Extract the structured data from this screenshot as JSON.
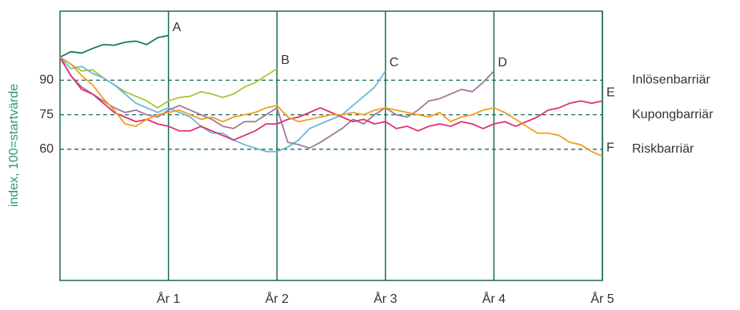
{
  "chart_data": {
    "type": "line",
    "ylabel": "index, 100=startvärde",
    "xlim": [
      0,
      5
    ],
    "ylim": [
      3,
      120
    ],
    "xticks": [
      {
        "value": 1,
        "label": "År 1"
      },
      {
        "value": 2,
        "label": "År 2"
      },
      {
        "value": 3,
        "label": "År 3"
      },
      {
        "value": 4,
        "label": "År 4"
      },
      {
        "value": 5,
        "label": "År 5"
      }
    ],
    "yticks": [
      60,
      75,
      90
    ],
    "reference_lines": [
      {
        "value": 90,
        "label": "Inlösenbarriär"
      },
      {
        "value": 75,
        "label": "Kupongbarriär"
      },
      {
        "value": 60,
        "label": "Riskbarriär"
      }
    ],
    "x": [
      0,
      0.1,
      0.2,
      0.3,
      0.4,
      0.5,
      0.6,
      0.7,
      0.8,
      0.9,
      1,
      1.1,
      1.2,
      1.3,
      1.4,
      1.5,
      1.6,
      1.7,
      1.8,
      1.9,
      2,
      2.1,
      2.2,
      2.3,
      2.4,
      2.5,
      2.6,
      2.7,
      2.8,
      2.9,
      3,
      3.1,
      3.2,
      3.3,
      3.4,
      3.5,
      3.6,
      3.7,
      3.8,
      3.9,
      4,
      4.1,
      4.2,
      4.3,
      4.4,
      4.5,
      4.6,
      4.7,
      4.8,
      4.9,
      5
    ],
    "series": [
      {
        "name": "A",
        "color": "#1a7a5e",
        "values": [
          100,
          102.4,
          101.8,
          103.8,
          105.5,
          105.2,
          106.5,
          107,
          105.5,
          108.5,
          109.4,
          null,
          null,
          null,
          null,
          null,
          null,
          null,
          null,
          null,
          null,
          null,
          null,
          null,
          null,
          null,
          null,
          null,
          null,
          null,
          null,
          null,
          null,
          null,
          null,
          null,
          null,
          null,
          null,
          null,
          null,
          null,
          null,
          null,
          null,
          null,
          null,
          null,
          null,
          null,
          null
        ]
      },
      {
        "name": "B",
        "color": "#a8c63a",
        "values": [
          100,
          97,
          94,
          94.5,
          91,
          88,
          85,
          83,
          81,
          78,
          81,
          82.5,
          83,
          85,
          84,
          82.5,
          84,
          87,
          89,
          92,
          95,
          null,
          null,
          null,
          null,
          null,
          null,
          null,
          null,
          null,
          null,
          null,
          null,
          null,
          null,
          null,
          null,
          null,
          null,
          null,
          null,
          null,
          null,
          null,
          null,
          null,
          null,
          null,
          null,
          null,
          null
        ]
      },
      {
        "name": "C",
        "color": "#6bb8de",
        "values": [
          100,
          95,
          96,
          93,
          91,
          88,
          84,
          80,
          78,
          76,
          78,
          76,
          74,
          70,
          67,
          67,
          64,
          62,
          60.5,
          59,
          59,
          61,
          64,
          69,
          71,
          73,
          75,
          79,
          83,
          87,
          94,
          null,
          null,
          null,
          null,
          null,
          null,
          null,
          null,
          null,
          null,
          null,
          null,
          null,
          null,
          null,
          null,
          null,
          null,
          null,
          null
        ]
      },
      {
        "name": "D",
        "color": "#a07a9a",
        "values": [
          100,
          92,
          87,
          84,
          81,
          78,
          76,
          77,
          75,
          74,
          77,
          79,
          77,
          75,
          73,
          70,
          69,
          72,
          72,
          75,
          78,
          63,
          62,
          60.5,
          63,
          66,
          69,
          73,
          71,
          75,
          78,
          75,
          74,
          77,
          81,
          82,
          84,
          86,
          85,
          89,
          94,
          null,
          null,
          null,
          null,
          null,
          null,
          null,
          null,
          null,
          null
        ]
      },
      {
        "name": "E",
        "color": "#e0307a",
        "values": [
          100,
          92,
          86,
          84,
          80,
          76,
          74,
          72,
          73,
          71,
          70,
          68,
          68,
          70,
          68,
          66,
          64,
          66,
          68,
          71,
          71,
          73,
          74,
          76,
          78,
          76,
          74,
          72,
          73,
          71,
          72,
          69,
          70,
          68,
          70,
          71,
          70,
          72,
          71,
          69,
          71,
          72,
          70,
          72,
          74,
          77,
          78,
          80,
          81,
          80,
          81
        ]
      },
      {
        "name": "F",
        "color": "#f0a020",
        "values": [
          100,
          97,
          92,
          88,
          82,
          77,
          71,
          70,
          73,
          75,
          76,
          77,
          75,
          73,
          74,
          72,
          74,
          75,
          76,
          78,
          79,
          74,
          72,
          73,
          74,
          75,
          75,
          76,
          75,
          77,
          78,
          77,
          76,
          75,
          74,
          76,
          72,
          74,
          75,
          77,
          78,
          76,
          73,
          70,
          67,
          67,
          66,
          63,
          62,
          59,
          57
        ]
      }
    ]
  }
}
